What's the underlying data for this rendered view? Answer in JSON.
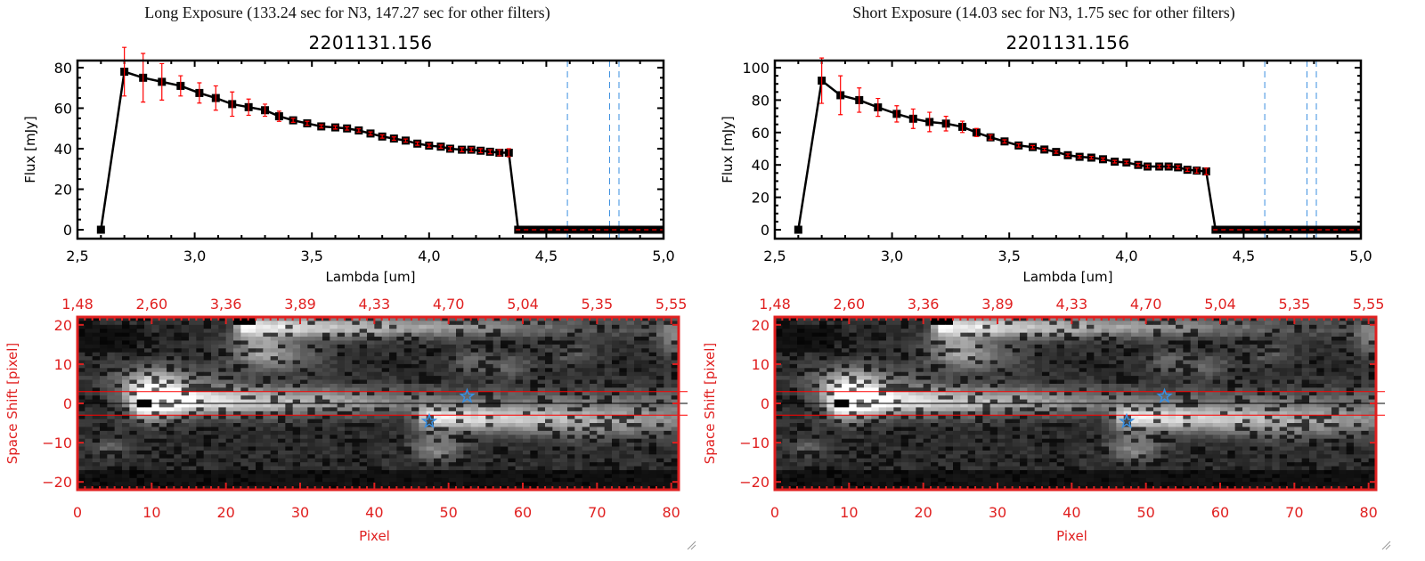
{
  "panels": [
    {
      "header": "Long Exposure (133.24 sec for N3, 147.27 sec for other filters)",
      "title": "2201131.156"
    },
    {
      "header": "Short Exposure (14.03 sec for N3, 1.75 sec for other filters)",
      "title": "2201131.156"
    }
  ],
  "chart_data": [
    {
      "type": "line",
      "title": "2201131.156",
      "xlabel": "Lambda [um]",
      "ylabel": "Flux [mJy]",
      "xlim": [
        2.5,
        5.0
      ],
      "ylim": [
        -4.4,
        83.5
      ],
      "xticks": [
        "2.5",
        "3.0",
        "3.5",
        "4.0",
        "4.5",
        "5.0"
      ],
      "yticks": [
        "0",
        "20",
        "40",
        "60",
        "80"
      ],
      "x": [
        2.6,
        2.7,
        2.78,
        2.86,
        2.94,
        3.02,
        3.09,
        3.16,
        3.23,
        3.3,
        3.36,
        3.42,
        3.48,
        3.54,
        3.6,
        3.65,
        3.7,
        3.75,
        3.8,
        3.85,
        3.9,
        3.95,
        4.0,
        4.05,
        4.09,
        4.14,
        4.18,
        4.22,
        4.26,
        4.3,
        4.34,
        4.38,
        4.41,
        4.44,
        4.47,
        4.5,
        4.53,
        4.56,
        4.59,
        4.62,
        4.65,
        4.68,
        4.71,
        4.74,
        4.77,
        4.8,
        4.83,
        4.86,
        4.89,
        4.92,
        4.95,
        4.98
      ],
      "y": [
        0,
        78,
        75,
        73,
        71,
        67.5,
        65,
        62,
        60.5,
        59,
        56,
        54,
        52.5,
        51,
        50.5,
        50,
        49,
        47.5,
        46,
        45,
        44,
        42.5,
        41.5,
        41,
        40,
        39.5,
        39.5,
        39,
        38.5,
        38,
        38,
        0,
        0,
        0,
        0,
        0,
        0,
        0,
        0,
        0,
        0,
        0,
        0,
        0,
        0,
        0,
        0,
        0,
        0,
        0,
        0,
        0
      ],
      "yerr": [
        0,
        12,
        12,
        9,
        5,
        5,
        6,
        6,
        4,
        3,
        2.5,
        1,
        1,
        0.8,
        0.8,
        0.8,
        0.8,
        0.8,
        0.8,
        0.8,
        0.8,
        0.8,
        0.8,
        0.8,
        1,
        1,
        1,
        1,
        1,
        1.5,
        2,
        0,
        0,
        0,
        0,
        0,
        0,
        0,
        0,
        0,
        0,
        0,
        0,
        0,
        0,
        0,
        0,
        0,
        0,
        0,
        0,
        0
      ],
      "vlines": [
        4.59,
        4.77,
        4.81
      ],
      "colors": {
        "line": "#000000",
        "errorbar": "#ff0000",
        "vline": "#3a8fe0",
        "zero_line": "#ff0000"
      }
    },
    {
      "type": "heatmap",
      "xlabel": "Pixel",
      "ylabel": "Space Shift [pixel]",
      "xlim": [
        0,
        81
      ],
      "ylim": [
        -22,
        22
      ],
      "xticks": [
        "0",
        "10",
        "20",
        "30",
        "40",
        "50",
        "60",
        "70",
        "80"
      ],
      "top_xticks": [
        "1.48",
        "2.60",
        "3.36",
        "3.89",
        "4.33",
        "4.70",
        "5.04",
        "5.35",
        "5.55"
      ],
      "yticks": [
        "-20",
        "-10",
        "0",
        "10",
        "20"
      ],
      "hlines": [
        {
          "y": 3,
          "color": "#ff0000"
        },
        {
          "y": -3,
          "color": "#ff0000"
        },
        {
          "y": 0,
          "color": "#000000"
        }
      ],
      "stars": [
        {
          "x": 52.5,
          "y": 1.8
        },
        {
          "x": 47.4,
          "y": -4.6
        }
      ],
      "colors": {
        "axis": "#e02020",
        "star": "#3a8fe0",
        "colormap": "gray"
      }
    },
    {
      "type": "line",
      "title": "2201131.156",
      "xlabel": "Lambda [um]",
      "ylabel": "Flux [mJy]",
      "xlim": [
        2.5,
        5.0
      ],
      "ylim": [
        -5.5,
        104.4
      ],
      "xticks": [
        "2.5",
        "3.0",
        "3.5",
        "4.0",
        "4.5",
        "5.0"
      ],
      "yticks": [
        "0",
        "20",
        "40",
        "60",
        "80",
        "100"
      ],
      "x": [
        2.6,
        2.7,
        2.78,
        2.86,
        2.94,
        3.02,
        3.09,
        3.16,
        3.23,
        3.3,
        3.36,
        3.42,
        3.48,
        3.54,
        3.6,
        3.65,
        3.7,
        3.75,
        3.8,
        3.85,
        3.9,
        3.95,
        4.0,
        4.05,
        4.09,
        4.14,
        4.18,
        4.22,
        4.26,
        4.3,
        4.34,
        4.38,
        4.41,
        4.44,
        4.47,
        4.5,
        4.53,
        4.56,
        4.59,
        4.62,
        4.65,
        4.68,
        4.71,
        4.74,
        4.77,
        4.8,
        4.83,
        4.86,
        4.89,
        4.92,
        4.95,
        4.98
      ],
      "y": [
        0,
        92,
        83,
        80,
        75.5,
        71.5,
        68.5,
        66.5,
        65.5,
        63.5,
        60,
        57,
        54.5,
        52,
        51,
        49.5,
        48,
        46,
        45,
        44.5,
        43.5,
        42,
        41.5,
        40,
        39,
        39,
        39,
        38.5,
        37,
        36.5,
        36,
        0,
        0,
        0,
        0,
        0,
        0,
        0,
        0,
        0,
        0,
        0,
        0,
        0,
        0,
        0,
        0,
        0,
        0,
        0,
        0,
        0
      ],
      "yerr": [
        0,
        14,
        12,
        7.5,
        5.5,
        5,
        6,
        6,
        4.5,
        3.5,
        2.5,
        1.5,
        1,
        1,
        1,
        0.8,
        0.8,
        0.8,
        0.8,
        0.8,
        0.8,
        0.8,
        0.8,
        1,
        1,
        1,
        1,
        1,
        1,
        1.5,
        2,
        0,
        0,
        0,
        0,
        0,
        0,
        0,
        0,
        0,
        0,
        0,
        0,
        0,
        0,
        0,
        0,
        0,
        0,
        0,
        0,
        0
      ],
      "vlines": [
        4.59,
        4.77,
        4.81
      ],
      "colors": {
        "line": "#000000",
        "errorbar": "#ff0000",
        "vline": "#3a8fe0",
        "zero_line": "#ff0000"
      }
    },
    {
      "type": "heatmap",
      "xlabel": "Pixel",
      "ylabel": "Space Shift [pixel]",
      "xlim": [
        0,
        81
      ],
      "ylim": [
        -22,
        22
      ],
      "xticks": [
        "0",
        "10",
        "20",
        "30",
        "40",
        "50",
        "60",
        "70",
        "80"
      ],
      "top_xticks": [
        "1.48",
        "2.60",
        "3.36",
        "3.89",
        "4.33",
        "4.70",
        "5.04",
        "5.35",
        "5.55"
      ],
      "yticks": [
        "-20",
        "-10",
        "0",
        "10",
        "20"
      ],
      "hlines": [
        {
          "y": 3,
          "color": "#ff0000"
        },
        {
          "y": -3,
          "color": "#ff0000"
        },
        {
          "y": 0,
          "color": "#000000"
        }
      ],
      "stars": [
        {
          "x": 52.5,
          "y": 1.8
        },
        {
          "x": 47.4,
          "y": -4.6
        }
      ],
      "colors": {
        "axis": "#e02020",
        "star": "#3a8fe0",
        "colormap": "gray"
      }
    }
  ]
}
